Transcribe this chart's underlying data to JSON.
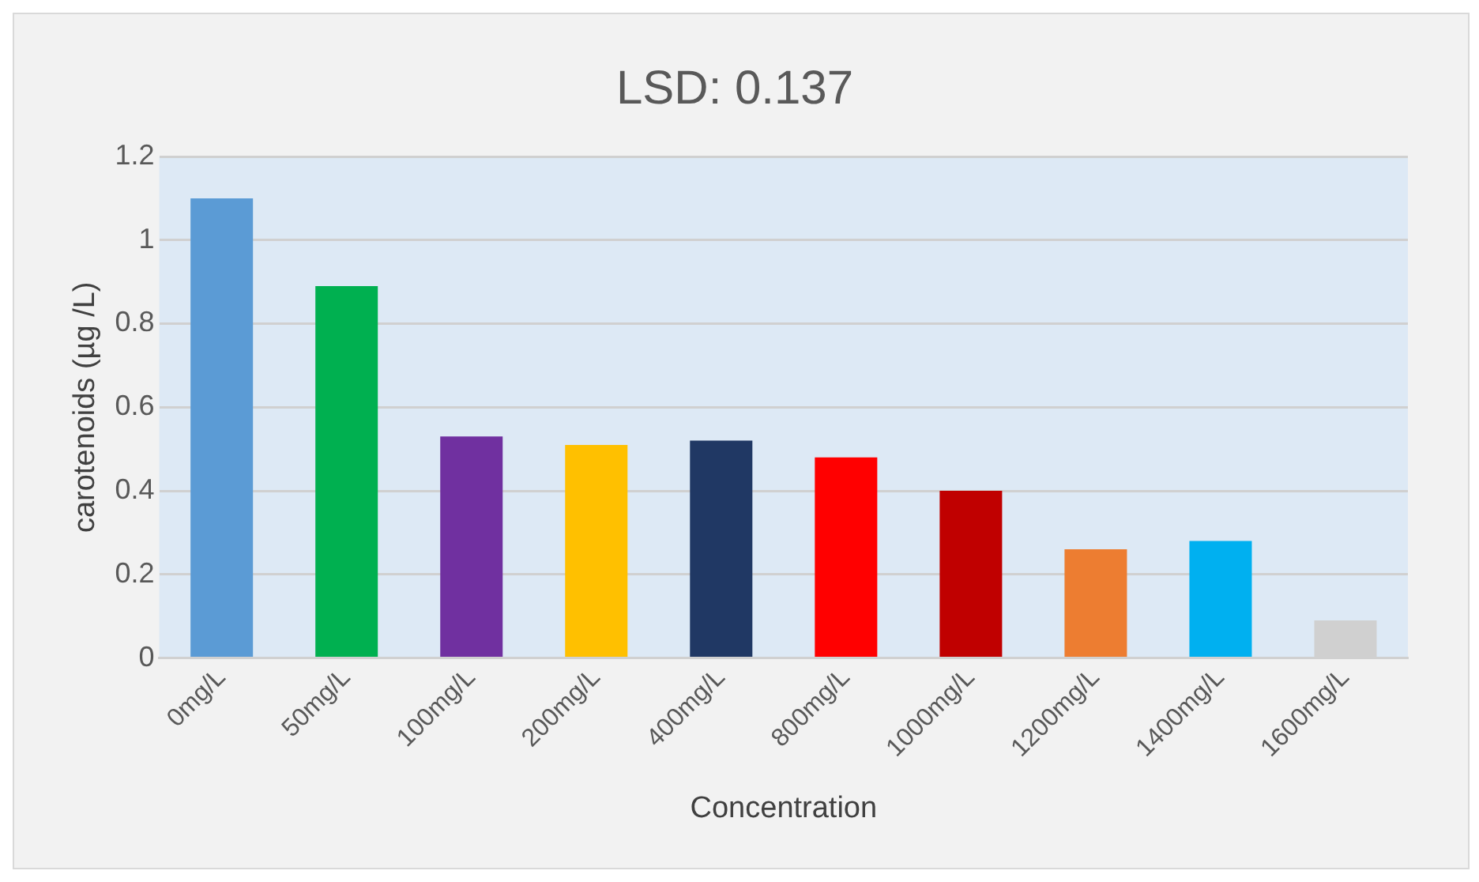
{
  "chart_data": {
    "type": "bar",
    "title": "LSD: 0.137",
    "xlabel": "Concentration",
    "ylabel": "carotenoids (µg /L)",
    "categories": [
      "0mg/L",
      "50mg/L",
      "100mg/L",
      "200mg/L",
      "400mg/L",
      "800mg/L",
      "1000mg/L",
      "1200mg/L",
      "1400mg/L",
      "1600mg/L"
    ],
    "values": [
      1.1,
      0.89,
      0.53,
      0.51,
      0.52,
      0.48,
      0.4,
      0.26,
      0.28,
      0.09
    ],
    "colors": [
      "#5b9bd5",
      "#00b050",
      "#7030a0",
      "#ffc000",
      "#203864",
      "#ff0000",
      "#c00000",
      "#ed7d31",
      "#00b0f0",
      "#d0d0d0"
    ],
    "ylim": [
      0,
      1.2
    ],
    "yticks": [
      0,
      0.2,
      0.4,
      0.6,
      0.8,
      1,
      1.2
    ],
    "grid": "y"
  }
}
